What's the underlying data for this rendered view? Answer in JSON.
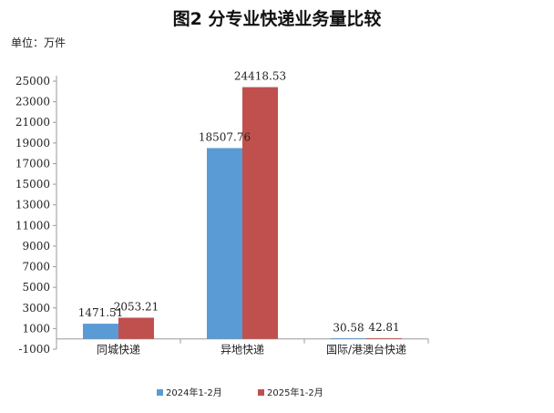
{
  "title": "图2 分专业快递业务量比较",
  "unit_label": "单位：万件",
  "colors": {
    "series_2024": "#5b9bd5",
    "series_2025": "#c0504d"
  },
  "chart_data": {
    "type": "bar",
    "title": "图2 分专业快递业务量比较",
    "xlabel": "",
    "ylabel": "",
    "categories": [
      "同城快递",
      "异地快递",
      "国际/港澳台快递"
    ],
    "series": [
      {
        "name": "2024年1-2月",
        "values": [
          1471.51,
          18507.76,
          30.58
        ],
        "labels": [
          "1471.51",
          "18507.76",
          "30.58"
        ]
      },
      {
        "name": "2025年1-2月",
        "values": [
          2053.21,
          24418.53,
          42.81
        ],
        "labels": [
          "2053.21",
          "24418.53",
          "42.81"
        ]
      }
    ],
    "ylim": [
      -1000,
      25000
    ],
    "yticks": [
      -1000,
      1000,
      3000,
      5000,
      7000,
      9000,
      11000,
      13000,
      15000,
      17000,
      19000,
      21000,
      23000,
      25000
    ],
    "grid": false,
    "legend_position": "bottom"
  }
}
